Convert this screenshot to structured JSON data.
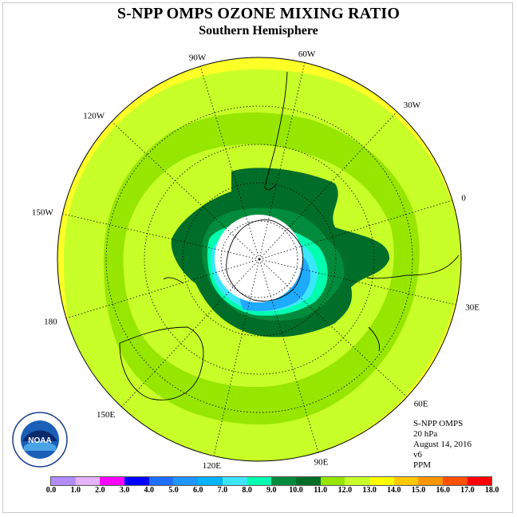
{
  "header": {
    "title": "S-NPP OMPS OZONE MIXING RATIO",
    "subtitle": "Southern Hemisphere"
  },
  "longitude_labels": [
    {
      "text": "90W",
      "angle": 90
    },
    {
      "text": "60W",
      "angle": 60
    },
    {
      "text": "30W",
      "angle": 30
    },
    {
      "text": "0",
      "angle": 0
    },
    {
      "text": "30E",
      "angle": -30
    },
    {
      "text": "60E",
      "angle": -60
    },
    {
      "text": "90E",
      "angle": -90
    },
    {
      "text": "120E",
      "angle": -120
    },
    {
      "text": "150E",
      "angle": -150
    },
    {
      "text": "180",
      "angle": 180
    },
    {
      "text": "150W",
      "angle": 150
    },
    {
      "text": "120W",
      "angle": 120
    }
  ],
  "info": {
    "instrument": "S-NPP OMPS",
    "level": "20 hPa",
    "date": "August 14, 2016",
    "version": "v6",
    "units": "PPM"
  },
  "colorbar": {
    "ticks": [
      "0.0",
      "1.0",
      "2.0",
      "3.0",
      "4.0",
      "5.0",
      "6.0",
      "7.0",
      "8.0",
      "9.0",
      "10.0",
      "11.0",
      "12.0",
      "13.0",
      "14.0",
      "15.0",
      "16.0",
      "17.0",
      "18.0"
    ],
    "colors": [
      "#b48cff",
      "#e6b4ff",
      "#ff00ff",
      "#0000ff",
      "#1e6eff",
      "#1e96ff",
      "#00b4ff",
      "#3ce6ff",
      "#00ffaf",
      "#008c3c",
      "#006e28",
      "#96e600",
      "#c8ff28",
      "#ffff00",
      "#ffc800",
      "#ff9600",
      "#ff5000",
      "#ff0000",
      "#8c5a2d"
    ]
  },
  "map_colors": {
    "background": "#ffff28",
    "level_11": "#c8ff28",
    "level_12": "#96e600",
    "level_9": "#008c3c",
    "level_10": "#006e28",
    "level_8": "#00ffaf",
    "level_7": "#3ce6ff",
    "level_6": "#1eaaff",
    "no_data": "#ffffff"
  },
  "logo": {
    "text": "NOAA"
  }
}
